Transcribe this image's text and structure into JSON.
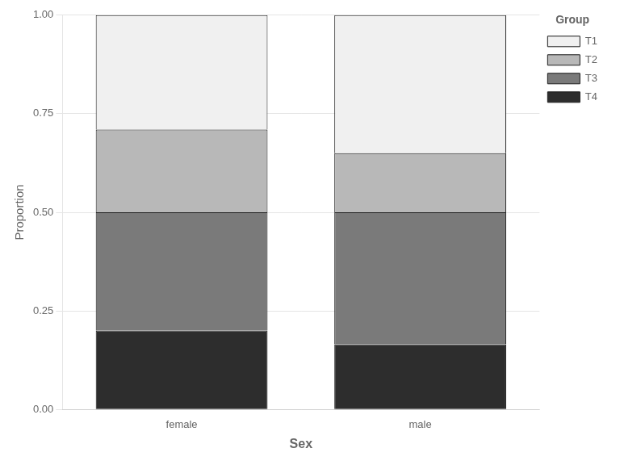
{
  "chart_data": {
    "type": "bar",
    "categories": [
      "female",
      "male"
    ],
    "series": [
      {
        "name": "T4",
        "color": "#2d2d2d",
        "values": [
          0.2,
          0.165
        ]
      },
      {
        "name": "T3",
        "color": "#7a7a7a",
        "values": [
          0.3,
          0.335
        ]
      },
      {
        "name": "T2",
        "color": "#b8b8b8",
        "values": [
          0.21,
          0.15
        ]
      },
      {
        "name": "T1",
        "color": "#f0f0f0",
        "values": [
          0.29,
          0.35
        ]
      }
    ],
    "stacked": true,
    "xlabel": "Sex",
    "ylabel": "Proportion",
    "legend_title": "Group",
    "legend": "right",
    "ylim": [
      0.0,
      1.0
    ],
    "yticks": [
      {
        "value": 0.0,
        "label": "0.00"
      },
      {
        "value": 0.25,
        "label": "0.25"
      },
      {
        "value": 0.5,
        "label": "0.50"
      },
      {
        "value": 0.75,
        "label": "0.75"
      },
      {
        "value": 1.0,
        "label": "1.00"
      }
    ],
    "grid": true
  }
}
